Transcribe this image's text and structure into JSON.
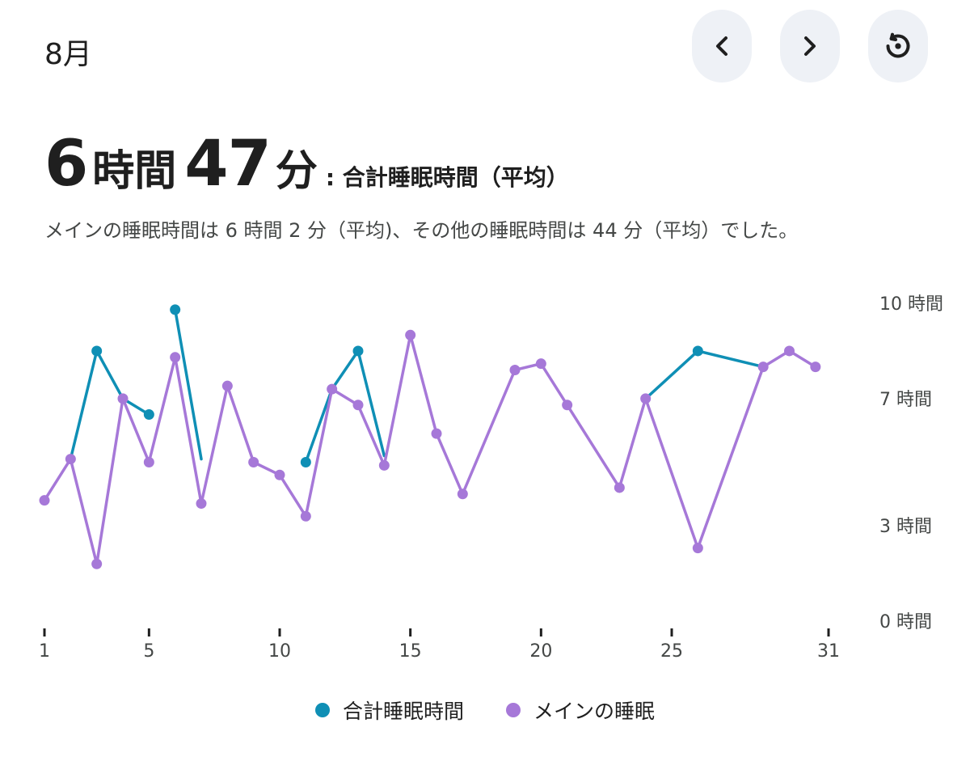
{
  "header": {
    "month": "8月",
    "prev_icon": "chevron-left-icon",
    "next_icon": "chevron-right-icon",
    "reset_icon": "history-icon"
  },
  "summary": {
    "hours": "6",
    "hours_unit": "時間",
    "minutes": "47",
    "minutes_unit": "分",
    "suffix": ": 合計睡眠時間（平均）",
    "description": "メインの睡眠時間は 6 時間 2 分（平均)、その他の睡眠時間は 44 分（平均）でした。"
  },
  "colors": {
    "total": "#0f8fb5",
    "main": "#a678d8"
  },
  "chart_data": {
    "type": "line",
    "x_ticks": [
      1,
      5,
      10,
      15,
      20,
      25,
      31
    ],
    "y_ticks": [
      {
        "value": 0,
        "label": "0 時間"
      },
      {
        "value": 3,
        "label": "3 時間"
      },
      {
        "value": 7,
        "label": "7 時間"
      },
      {
        "value": 10,
        "label": "10 時間"
      }
    ],
    "xlim": [
      1,
      31
    ],
    "ylim": [
      0,
      10
    ],
    "legend_position": "bottom",
    "series": [
      {
        "name": "合計睡眠時間",
        "color": "#0f8fb5",
        "segments": [
          [
            [
              2,
              5.1
            ],
            [
              3,
              8.5
            ],
            [
              4,
              7.0
            ],
            [
              5,
              6.5
            ]
          ],
          [
            [
              6,
              9.8
            ],
            [
              7,
              5.1
            ]
          ],
          [
            [
              11,
              5.0
            ],
            [
              12,
              7.3
            ],
            [
              13,
              8.5
            ],
            [
              14,
              5.2
            ]
          ],
          [
            [
              24,
              7.0
            ],
            [
              26,
              8.5
            ],
            [
              28.5,
              8.0
            ]
          ]
        ],
        "markers": [
          [
            3,
            8.5
          ],
          [
            5,
            6.5
          ],
          [
            6,
            9.8
          ],
          [
            11,
            5.0
          ],
          [
            13,
            8.5
          ],
          [
            26,
            8.5
          ]
        ]
      },
      {
        "name": "メインの睡眠",
        "color": "#a678d8",
        "points": [
          [
            1,
            3.8
          ],
          [
            2,
            5.1
          ],
          [
            3,
            1.8
          ],
          [
            4,
            7.0
          ],
          [
            5,
            5.0
          ],
          [
            6,
            8.3
          ],
          [
            7,
            3.7
          ],
          [
            8,
            7.4
          ],
          [
            9,
            5.0
          ],
          [
            10,
            4.6
          ],
          [
            11,
            3.3
          ],
          [
            12,
            7.3
          ],
          [
            13,
            6.8
          ],
          [
            14,
            4.9
          ],
          [
            15,
            9.0
          ],
          [
            16,
            5.9
          ],
          [
            17,
            4.0
          ],
          [
            19,
            7.9
          ],
          [
            20,
            8.1
          ],
          [
            21,
            6.8
          ],
          [
            23,
            4.2
          ],
          [
            24,
            7.0
          ],
          [
            26,
            2.3
          ],
          [
            28.5,
            8.0
          ],
          [
            29.5,
            8.5
          ],
          [
            30.5,
            8.0
          ]
        ]
      }
    ]
  }
}
